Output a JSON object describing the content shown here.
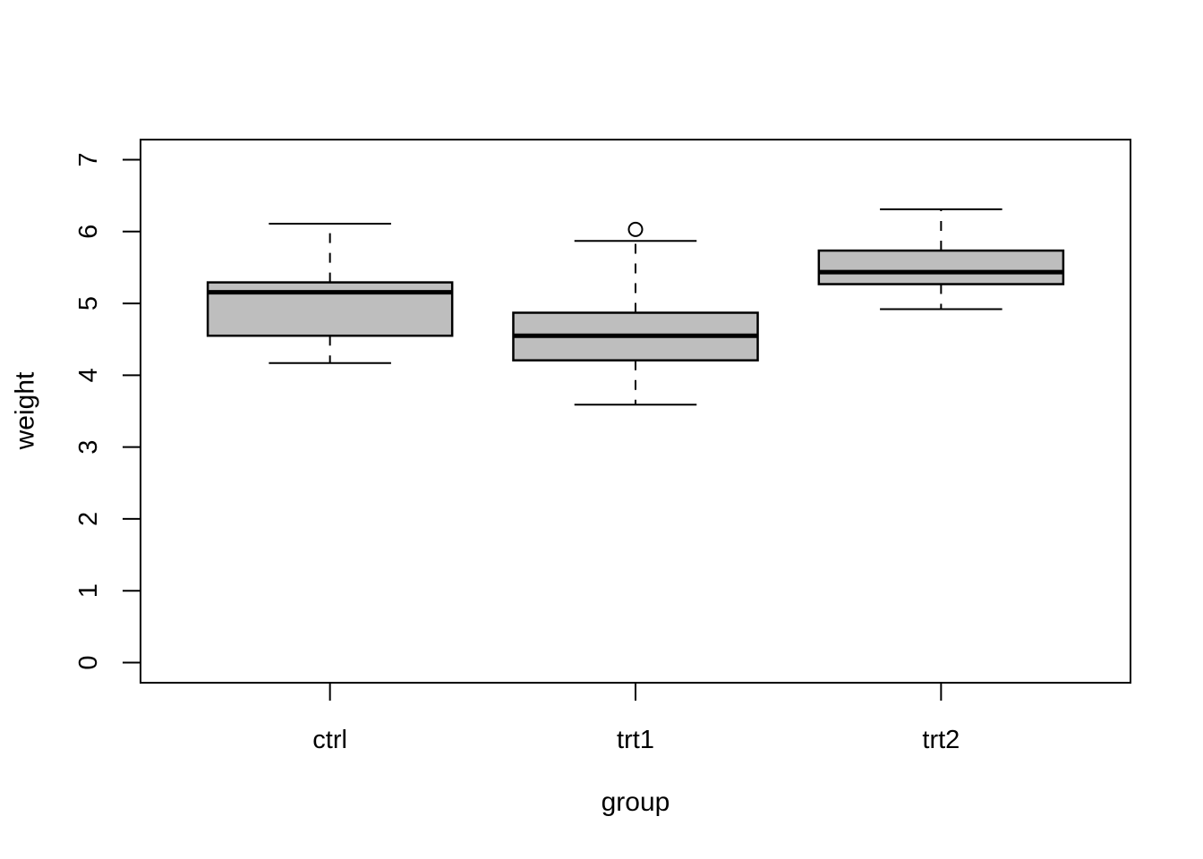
{
  "chart_data": {
    "type": "boxplot",
    "title": "",
    "xlabel": "group",
    "ylabel": "weight",
    "categories": [
      "ctrl",
      "trt1",
      "trt2"
    ],
    "y_ticks": [
      0,
      1,
      2,
      3,
      4,
      5,
      6,
      7
    ],
    "ylim": [
      -0.28,
      7.28
    ],
    "xlim": [
      0.38,
      3.62
    ],
    "grid": false,
    "legend": null,
    "box_width_units": 0.8,
    "cap_width_units": 0.4,
    "series": [
      {
        "name": "ctrl",
        "lower_whisker": 4.17,
        "q1": 4.55,
        "median": 5.155,
        "q3": 5.2925,
        "upper_whisker": 6.11,
        "outliers": []
      },
      {
        "name": "trt1",
        "lower_whisker": 3.59,
        "q1": 4.2075,
        "median": 4.55,
        "q3": 4.87,
        "upper_whisker": 5.87,
        "outliers": [
          6.03
        ]
      },
      {
        "name": "trt2",
        "lower_whisker": 4.92,
        "q1": 5.268,
        "median": 5.435,
        "q3": 5.735,
        "upper_whisker": 6.31,
        "outliers": []
      }
    ],
    "colors": {
      "box_fill": "#BEBEBE",
      "stroke": "#000000",
      "background": "#FFFFFF"
    }
  }
}
